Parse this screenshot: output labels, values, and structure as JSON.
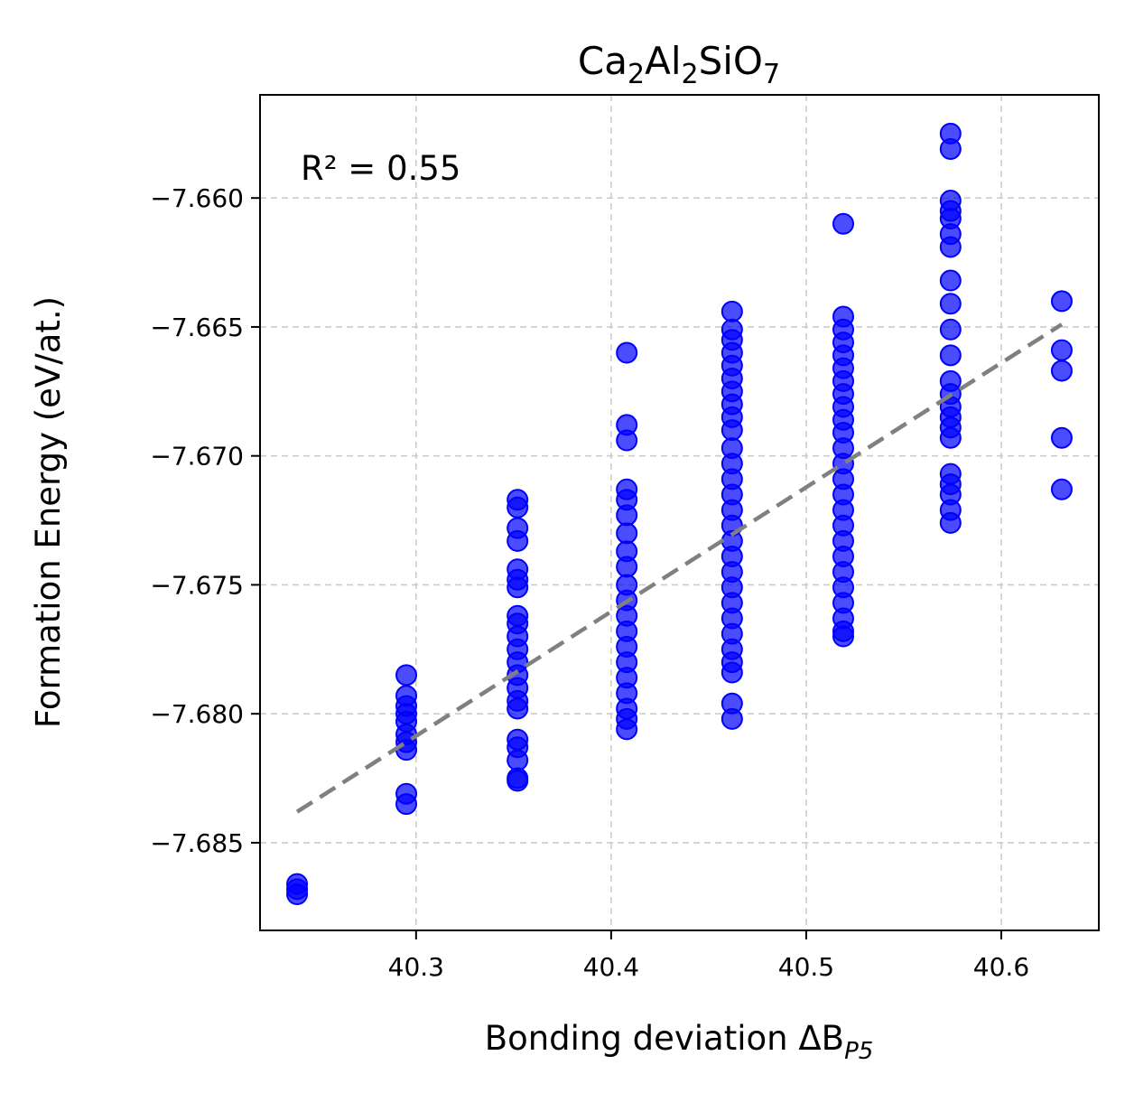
{
  "chart_data": {
    "type": "scatter",
    "title": {
      "base1": "Ca",
      "sub1": "2",
      "base2": "Al",
      "sub2": "2",
      "base3": "SiO",
      "sub3": "7"
    },
    "xlabel": {
      "base": "Bonding deviation ΔB",
      "sub": "P5"
    },
    "ylabel": "Formation Energy (eV/at.)",
    "annotation": "R² = 0.55",
    "xlim": [
      40.22,
      40.65
    ],
    "ylim": [
      -7.6884,
      -7.656
    ],
    "xticks": [
      {
        "value": 40.3,
        "label": "40.3"
      },
      {
        "value": 40.4,
        "label": "40.4"
      },
      {
        "value": 40.5,
        "label": "40.5"
      },
      {
        "value": 40.6,
        "label": "40.6"
      }
    ],
    "yticks": [
      {
        "value": -7.66,
        "label": "−7.660"
      },
      {
        "value": -7.665,
        "label": "−7.665"
      },
      {
        "value": -7.67,
        "label": "−7.670"
      },
      {
        "value": -7.675,
        "label": "−7.675"
      },
      {
        "value": -7.68,
        "label": "−7.680"
      },
      {
        "value": -7.685,
        "label": "−7.685"
      }
    ],
    "grid": true,
    "point_color": "#0000ff",
    "fit_line_color": "#808080",
    "fit_line": {
      "x": [
        40.239,
        40.631
      ],
      "y": [
        -7.6838,
        -7.6649
      ]
    },
    "series": [
      {
        "points": [
          [
            40.239,
            -7.6866
          ],
          [
            40.239,
            -7.6868
          ],
          [
            40.239,
            -7.687
          ],
          [
            40.295,
            -7.6785
          ],
          [
            40.295,
            -7.6793
          ],
          [
            40.295,
            -7.6797
          ],
          [
            40.295,
            -7.68
          ],
          [
            40.295,
            -7.6803
          ],
          [
            40.295,
            -7.6808
          ],
          [
            40.295,
            -7.6811
          ],
          [
            40.295,
            -7.6814
          ],
          [
            40.295,
            -7.6831
          ],
          [
            40.295,
            -7.6835
          ],
          [
            40.352,
            -7.6717
          ],
          [
            40.352,
            -7.672
          ],
          [
            40.352,
            -7.6728
          ],
          [
            40.352,
            -7.6733
          ],
          [
            40.352,
            -7.6744
          ],
          [
            40.352,
            -7.6748
          ],
          [
            40.352,
            -7.6751
          ],
          [
            40.352,
            -7.6762
          ],
          [
            40.352,
            -7.6765
          ],
          [
            40.352,
            -7.677
          ],
          [
            40.352,
            -7.6775
          ],
          [
            40.352,
            -7.678
          ],
          [
            40.352,
            -7.6785
          ],
          [
            40.352,
            -7.679
          ],
          [
            40.352,
            -7.6795
          ],
          [
            40.352,
            -7.6798
          ],
          [
            40.352,
            -7.681
          ],
          [
            40.352,
            -7.6813
          ],
          [
            40.352,
            -7.6818
          ],
          [
            40.352,
            -7.6825
          ],
          [
            40.352,
            -7.6826
          ],
          [
            40.408,
            -7.666
          ],
          [
            40.408,
            -7.6688
          ],
          [
            40.408,
            -7.6694
          ],
          [
            40.408,
            -7.6713
          ],
          [
            40.408,
            -7.6717
          ],
          [
            40.408,
            -7.6723
          ],
          [
            40.408,
            -7.673
          ],
          [
            40.408,
            -7.6737
          ],
          [
            40.408,
            -7.6743
          ],
          [
            40.408,
            -7.675
          ],
          [
            40.408,
            -7.6756
          ],
          [
            40.408,
            -7.6762
          ],
          [
            40.408,
            -7.6768
          ],
          [
            40.408,
            -7.6774
          ],
          [
            40.408,
            -7.678
          ],
          [
            40.408,
            -7.6786
          ],
          [
            40.408,
            -7.6792
          ],
          [
            40.408,
            -7.6798
          ],
          [
            40.408,
            -7.6802
          ],
          [
            40.408,
            -7.6806
          ],
          [
            40.462,
            -7.6644
          ],
          [
            40.462,
            -7.6651
          ],
          [
            40.462,
            -7.6655
          ],
          [
            40.462,
            -7.666
          ],
          [
            40.462,
            -7.6665
          ],
          [
            40.462,
            -7.667
          ],
          [
            40.462,
            -7.6675
          ],
          [
            40.462,
            -7.668
          ],
          [
            40.462,
            -7.6685
          ],
          [
            40.462,
            -7.669
          ],
          [
            40.462,
            -7.6697
          ],
          [
            40.462,
            -7.6703
          ],
          [
            40.462,
            -7.6709
          ],
          [
            40.462,
            -7.6715
          ],
          [
            40.462,
            -7.6721
          ],
          [
            40.462,
            -7.6727
          ],
          [
            40.462,
            -7.6733
          ],
          [
            40.462,
            -7.6739
          ],
          [
            40.462,
            -7.6745
          ],
          [
            40.462,
            -7.6751
          ],
          [
            40.462,
            -7.6757
          ],
          [
            40.462,
            -7.6763
          ],
          [
            40.462,
            -7.6769
          ],
          [
            40.462,
            -7.6775
          ],
          [
            40.462,
            -7.678
          ],
          [
            40.462,
            -7.6784
          ],
          [
            40.462,
            -7.6796
          ],
          [
            40.462,
            -7.6802
          ],
          [
            40.519,
            -7.661
          ],
          [
            40.519,
            -7.6646
          ],
          [
            40.519,
            -7.6651
          ],
          [
            40.519,
            -7.6656
          ],
          [
            40.519,
            -7.6661
          ],
          [
            40.519,
            -7.6666
          ],
          [
            40.519,
            -7.6671
          ],
          [
            40.519,
            -7.6676
          ],
          [
            40.519,
            -7.6681
          ],
          [
            40.519,
            -7.6686
          ],
          [
            40.519,
            -7.6691
          ],
          [
            40.519,
            -7.6697
          ],
          [
            40.519,
            -7.6703
          ],
          [
            40.519,
            -7.6709
          ],
          [
            40.519,
            -7.6715
          ],
          [
            40.519,
            -7.6721
          ],
          [
            40.519,
            -7.6727
          ],
          [
            40.519,
            -7.6733
          ],
          [
            40.519,
            -7.6739
          ],
          [
            40.519,
            -7.6745
          ],
          [
            40.519,
            -7.6751
          ],
          [
            40.519,
            -7.6757
          ],
          [
            40.519,
            -7.6763
          ],
          [
            40.519,
            -7.6768
          ],
          [
            40.519,
            -7.677
          ],
          [
            40.574,
            -7.6575
          ],
          [
            40.574,
            -7.6581
          ],
          [
            40.574,
            -7.6601
          ],
          [
            40.574,
            -7.6605
          ],
          [
            40.574,
            -7.6608
          ],
          [
            40.574,
            -7.6614
          ],
          [
            40.574,
            -7.6619
          ],
          [
            40.574,
            -7.6632
          ],
          [
            40.574,
            -7.6641
          ],
          [
            40.574,
            -7.6651
          ],
          [
            40.574,
            -7.6661
          ],
          [
            40.574,
            -7.6671
          ],
          [
            40.574,
            -7.6676
          ],
          [
            40.574,
            -7.6681
          ],
          [
            40.574,
            -7.6685
          ],
          [
            40.574,
            -7.6689
          ],
          [
            40.574,
            -7.6693
          ],
          [
            40.574,
            -7.6707
          ],
          [
            40.574,
            -7.6711
          ],
          [
            40.574,
            -7.6715
          ],
          [
            40.574,
            -7.6721
          ],
          [
            40.574,
            -7.6726
          ],
          [
            40.631,
            -7.664
          ],
          [
            40.631,
            -7.6659
          ],
          [
            40.631,
            -7.6667
          ],
          [
            40.631,
            -7.6693
          ],
          [
            40.631,
            -7.6713
          ]
        ]
      }
    ]
  }
}
